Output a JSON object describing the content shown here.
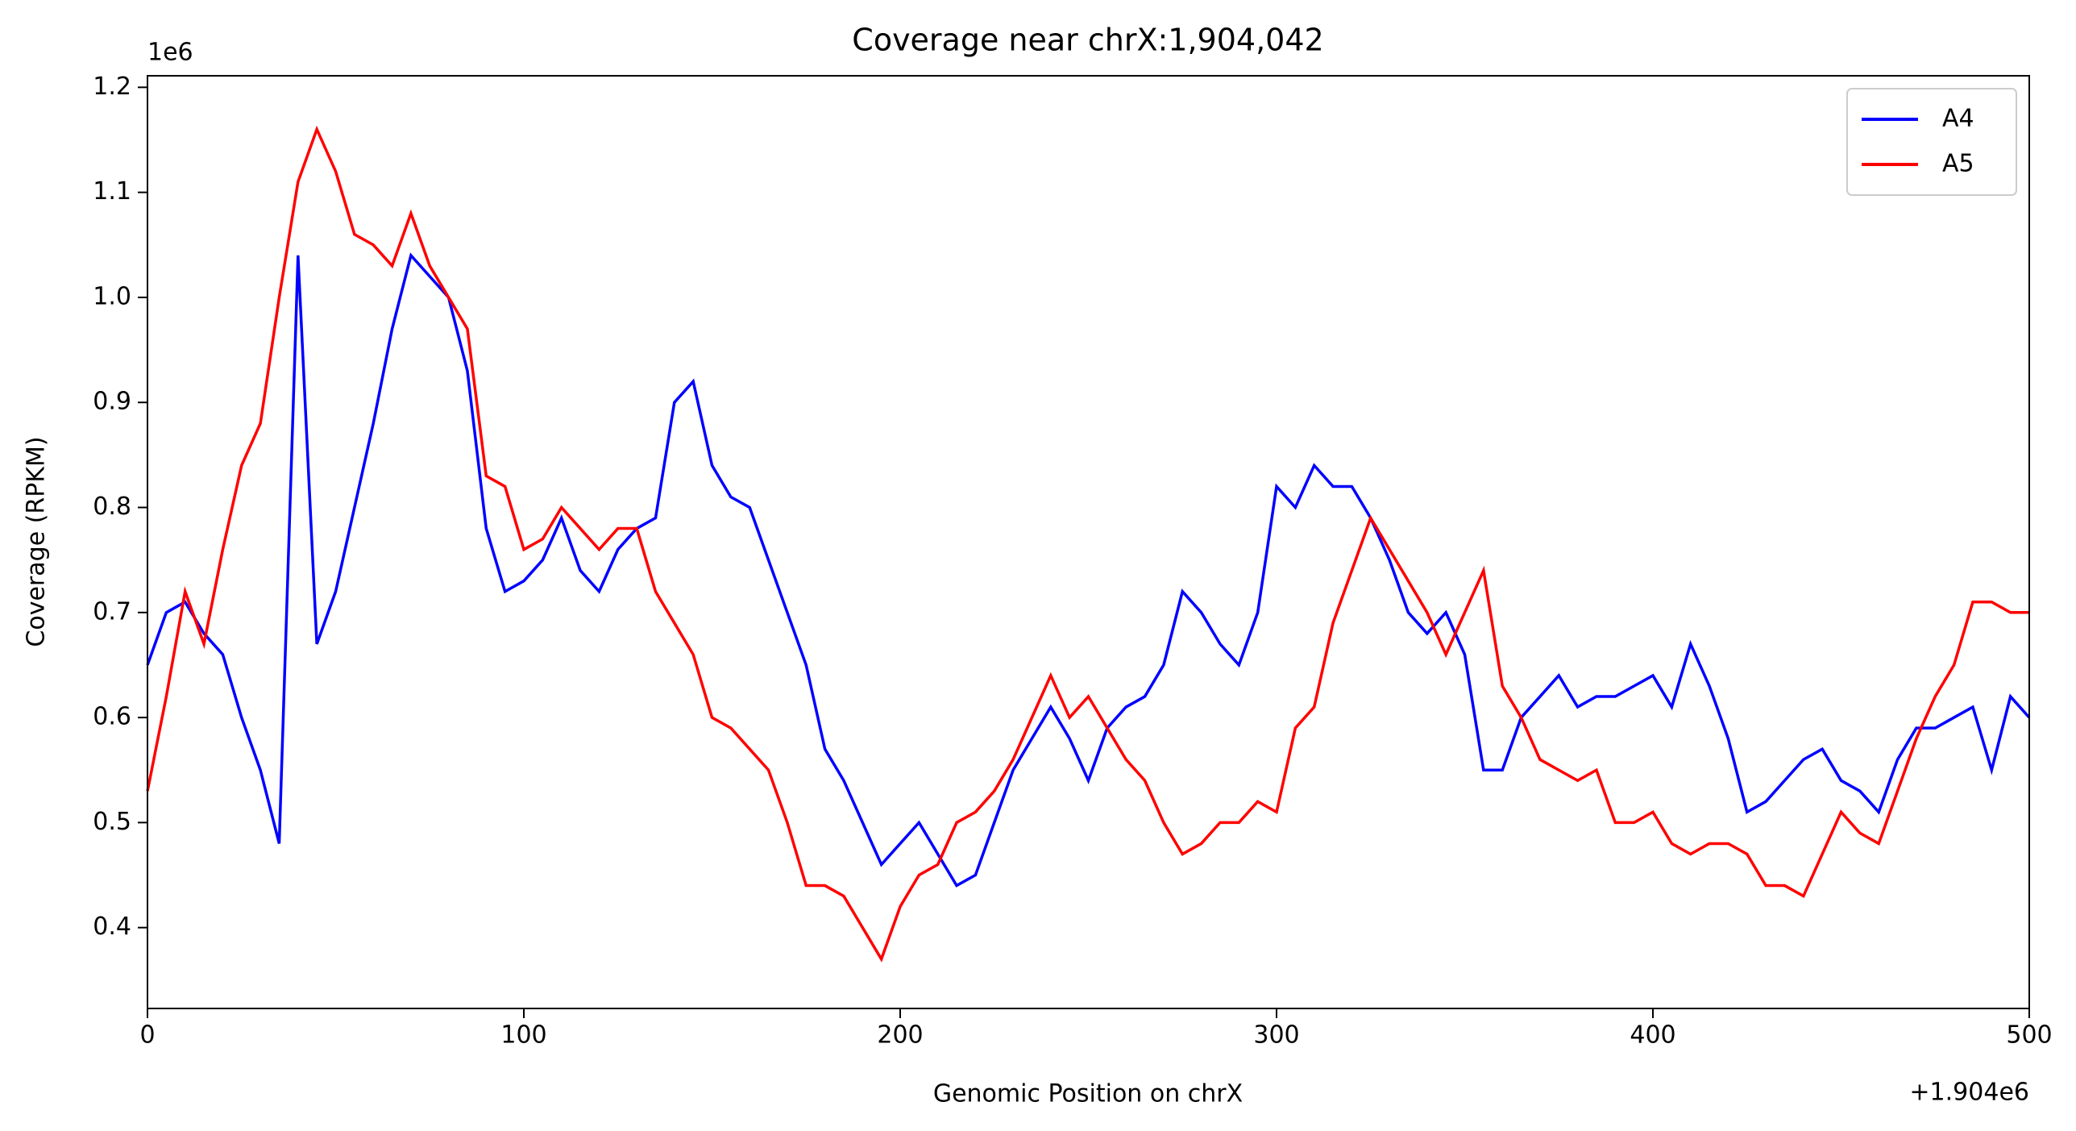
{
  "chart_data": {
    "type": "line",
    "title": "Coverage near chrX:1,904,042",
    "x_label": "Genomic Position on chrX",
    "y_label": "Coverage (RPKM)",
    "x_offset_text": "+1.904e6",
    "y_offset_text": "1e6",
    "x": [
      0,
      5,
      10,
      15,
      20,
      25,
      30,
      35,
      40,
      45,
      50,
      55,
      60,
      65,
      70,
      75,
      80,
      85,
      90,
      95,
      100,
      105,
      110,
      115,
      120,
      125,
      130,
      135,
      140,
      145,
      150,
      155,
      160,
      165,
      170,
      175,
      180,
      185,
      190,
      195,
      200,
      205,
      210,
      215,
      220,
      225,
      230,
      235,
      240,
      245,
      250,
      255,
      260,
      265,
      270,
      275,
      280,
      285,
      290,
      295,
      300,
      305,
      310,
      315,
      320,
      325,
      330,
      335,
      340,
      345,
      350,
      355,
      360,
      365,
      370,
      375,
      380,
      385,
      390,
      395,
      400,
      405,
      410,
      415,
      420,
      425,
      430,
      435,
      440,
      445,
      450,
      455,
      460,
      465,
      470,
      475,
      480,
      485,
      490,
      495,
      500
    ],
    "series": [
      {
        "name": "A4",
        "color": "#0000ff",
        "values": [
          0.65,
          0.7,
          0.71,
          0.68,
          0.66,
          0.6,
          0.55,
          0.48,
          1.04,
          0.67,
          0.72,
          0.8,
          0.88,
          0.97,
          1.04,
          1.02,
          1.0,
          0.93,
          0.78,
          0.72,
          0.73,
          0.75,
          0.79,
          0.74,
          0.72,
          0.76,
          0.78,
          0.79,
          0.9,
          0.92,
          0.84,
          0.81,
          0.8,
          0.75,
          0.7,
          0.65,
          0.57,
          0.54,
          0.5,
          0.46,
          0.48,
          0.5,
          0.47,
          0.44,
          0.45,
          0.5,
          0.55,
          0.58,
          0.61,
          0.58,
          0.54,
          0.59,
          0.61,
          0.62,
          0.65,
          0.72,
          0.7,
          0.67,
          0.65,
          0.7,
          0.82,
          0.8,
          0.84,
          0.82,
          0.82,
          0.79,
          0.75,
          0.7,
          0.68,
          0.7,
          0.66,
          0.55,
          0.55,
          0.6,
          0.62,
          0.64,
          0.61,
          0.62,
          0.62,
          0.63,
          0.64,
          0.61,
          0.67,
          0.63,
          0.58,
          0.51,
          0.52,
          0.54,
          0.56,
          0.57,
          0.54,
          0.53,
          0.51,
          0.56,
          0.59,
          0.59,
          0.6,
          0.61,
          0.55,
          0.62,
          0.6
        ]
      },
      {
        "name": "A5",
        "color": "#ff0000",
        "values": [
          0.53,
          0.62,
          0.72,
          0.67,
          0.76,
          0.84,
          0.88,
          1.0,
          1.11,
          1.16,
          1.12,
          1.06,
          1.05,
          1.03,
          1.08,
          1.03,
          1.0,
          0.97,
          0.83,
          0.82,
          0.76,
          0.77,
          0.8,
          0.78,
          0.76,
          0.78,
          0.78,
          0.72,
          0.69,
          0.66,
          0.6,
          0.59,
          0.57,
          0.55,
          0.5,
          0.44,
          0.44,
          0.43,
          0.4,
          0.37,
          0.42,
          0.45,
          0.46,
          0.5,
          0.51,
          0.53,
          0.56,
          0.6,
          0.64,
          0.6,
          0.62,
          0.59,
          0.56,
          0.54,
          0.5,
          0.47,
          0.48,
          0.5,
          0.5,
          0.52,
          0.51,
          0.59,
          0.61,
          0.69,
          0.74,
          0.79,
          0.76,
          0.73,
          0.7,
          0.66,
          0.7,
          0.74,
          0.63,
          0.6,
          0.56,
          0.55,
          0.54,
          0.55,
          0.5,
          0.5,
          0.51,
          0.48,
          0.47,
          0.48,
          0.48,
          0.47,
          0.44,
          0.44,
          0.43,
          0.47,
          0.51,
          0.49,
          0.48,
          0.53,
          0.58,
          0.62,
          0.65,
          0.71,
          0.71,
          0.7,
          0.7
        ]
      }
    ],
    "xlim": [
      0,
      500
    ],
    "ylim": [
      0.323,
      1.211
    ],
    "xticks": [
      0,
      100,
      200,
      300,
      400,
      500
    ],
    "yticks": [
      0.4,
      0.5,
      0.6,
      0.7,
      0.8,
      0.9,
      {
        "value": 1.0,
        "label": "1.0"
      },
      1.1,
      1.2
    ],
    "legend": "upper right"
  }
}
